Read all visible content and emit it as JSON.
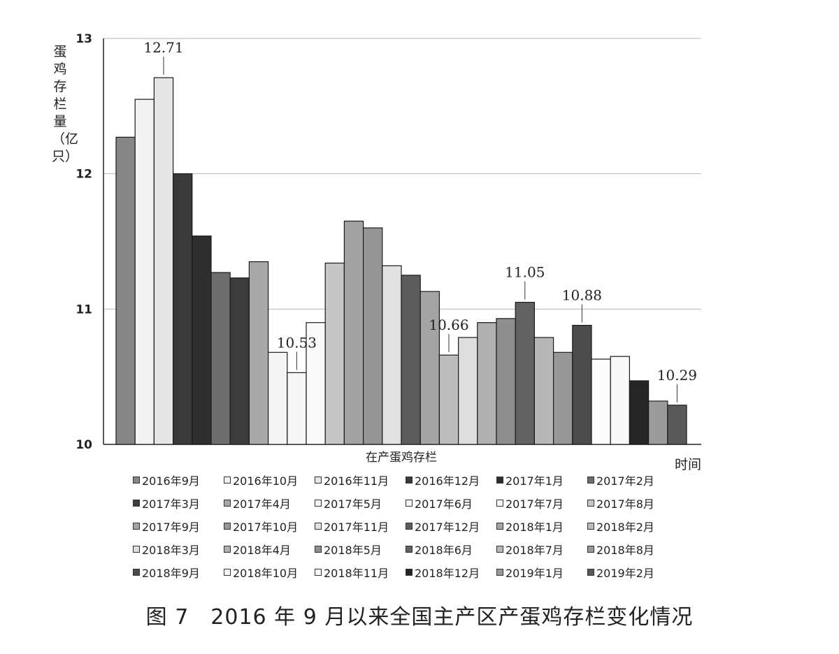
{
  "chart_data": {
    "type": "bar",
    "caption": "图 7　2016 年 9 月以来全国主产区产蛋鸡存栏变化情况",
    "ylabel": "蛋鸡存栏量（亿只）",
    "xlabel": "时间",
    "category_label": "在产蛋鸡存栏",
    "ylim": [
      10,
      13
    ],
    "yticks": [
      "10",
      "11",
      "12",
      "13"
    ],
    "grid": true,
    "legend_position": "bottom",
    "series": [
      {
        "name": "2016年9月",
        "value": 12.27,
        "color": "#868686"
      },
      {
        "name": "2016年10月",
        "value": 12.55,
        "color": "#f2f2f2"
      },
      {
        "name": "2016年11月",
        "value": 12.71,
        "color": "#e6e6e6"
      },
      {
        "name": "2016年12月",
        "value": 12.0,
        "color": "#3a3a3a"
      },
      {
        "name": "2017年1月",
        "value": 11.54,
        "color": "#2e2e2e"
      },
      {
        "name": "2017年2月",
        "value": 11.27,
        "color": "#6e6e6e"
      },
      {
        "name": "2017年3月",
        "value": 11.23,
        "color": "#3c3c3c"
      },
      {
        "name": "2017年4月",
        "value": 11.35,
        "color": "#a8a8a8"
      },
      {
        "name": "2017年5月",
        "value": 10.68,
        "color": "#f4f4f4"
      },
      {
        "name": "2017年6月",
        "value": 10.53,
        "color": "#f6f6f6"
      },
      {
        "name": "2017年7月",
        "value": 10.9,
        "color": "#fafafa"
      },
      {
        "name": "2017年8月",
        "value": 11.34,
        "color": "#c6c6c6"
      },
      {
        "name": "2017年9月",
        "value": 11.65,
        "color": "#a2a2a2"
      },
      {
        "name": "2017年10月",
        "value": 11.6,
        "color": "#959595"
      },
      {
        "name": "2017年11月",
        "value": 11.32,
        "color": "#e1e1e1"
      },
      {
        "name": "2017年12月",
        "value": 11.25,
        "color": "#5d5d5d"
      },
      {
        "name": "2018年1月",
        "value": 11.13,
        "color": "#a4a4a4"
      },
      {
        "name": "2018年2月",
        "value": 10.66,
        "color": "#bcbcbc"
      },
      {
        "name": "2018年3月",
        "value": 10.79,
        "color": "#dedede"
      },
      {
        "name": "2018年4月",
        "value": 10.9,
        "color": "#b0b0b0"
      },
      {
        "name": "2018年5月",
        "value": 10.93,
        "color": "#8e8e8e"
      },
      {
        "name": "2018年6月",
        "value": 11.05,
        "color": "#626262"
      },
      {
        "name": "2018年7月",
        "value": 10.79,
        "color": "#b7b7b7"
      },
      {
        "name": "2018年8月",
        "value": 10.68,
        "color": "#979797"
      },
      {
        "name": "2018年9月",
        "value": 10.88,
        "color": "#4c4c4c"
      },
      {
        "name": "2018年10月",
        "value": 10.63,
        "color": "#fbfbfb"
      },
      {
        "name": "2018年11月",
        "value": 10.65,
        "color": "#f8f8f8"
      },
      {
        "name": "2018年12月",
        "value": 10.47,
        "color": "#262626"
      },
      {
        "name": "2019年1月",
        "value": 10.32,
        "color": "#9b9b9b"
      },
      {
        "name": "2019年2月",
        "value": 10.29,
        "color": "#595959"
      }
    ],
    "annotations": [
      {
        "series": "2016年11月",
        "text": "12.71"
      },
      {
        "series": "2017年6月",
        "text": "10.53"
      },
      {
        "series": "2018年2月",
        "text": "10.66"
      },
      {
        "series": "2018年6月",
        "text": "11.05"
      },
      {
        "series": "2018年9月",
        "text": "10.88"
      },
      {
        "series": "2019年2月",
        "text": "10.29"
      }
    ]
  }
}
